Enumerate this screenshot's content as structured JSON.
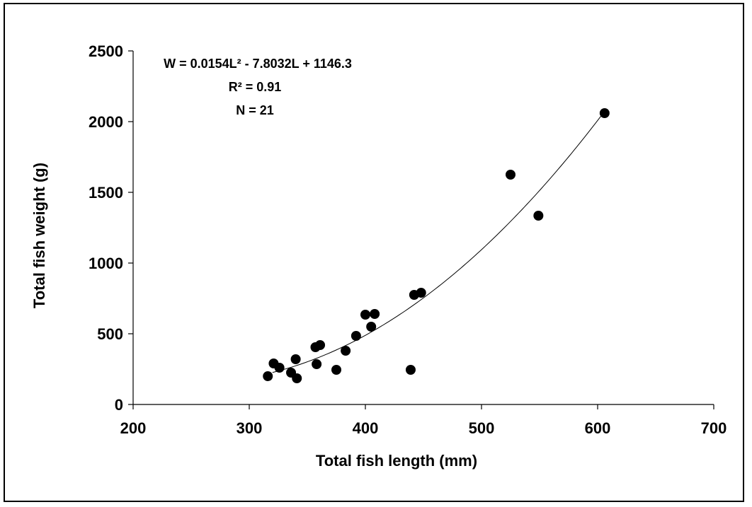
{
  "chart_data": {
    "type": "scatter",
    "xlabel": "Total fish length (mm)",
    "ylabel": "Total fish weight (g)",
    "xlim": [
      200,
      700
    ],
    "ylim": [
      0,
      2500
    ],
    "x_ticks": [
      200,
      300,
      400,
      500,
      600,
      700
    ],
    "y_ticks": [
      0,
      500,
      1000,
      1500,
      2000,
      2500
    ],
    "grid": false,
    "legend": "none",
    "annotations": {
      "equation": "W = 0.0154L² - 7.8032L + 1146.3",
      "r_squared": "R² = 0.91",
      "n": "N = 21"
    },
    "trendline": {
      "type": "polynomial",
      "coefficients": {
        "a": 0.0154,
        "b": -7.8032,
        "c": 1146.3
      },
      "x_range": [
        320,
        606
      ]
    },
    "series": [
      {
        "points": [
          {
            "x": 316,
            "y": 200
          },
          {
            "x": 321,
            "y": 290
          },
          {
            "x": 326,
            "y": 260
          },
          {
            "x": 336,
            "y": 225
          },
          {
            "x": 340,
            "y": 320
          },
          {
            "x": 341,
            "y": 185
          },
          {
            "x": 357,
            "y": 405
          },
          {
            "x": 358,
            "y": 285
          },
          {
            "x": 361,
            "y": 420
          },
          {
            "x": 375,
            "y": 245
          },
          {
            "x": 383,
            "y": 380
          },
          {
            "x": 392,
            "y": 485
          },
          {
            "x": 400,
            "y": 635
          },
          {
            "x": 405,
            "y": 550
          },
          {
            "x": 408,
            "y": 640
          },
          {
            "x": 439,
            "y": 245
          },
          {
            "x": 442,
            "y": 775
          },
          {
            "x": 448,
            "y": 790
          },
          {
            "x": 525,
            "y": 1625
          },
          {
            "x": 549,
            "y": 1335
          },
          {
            "x": 606,
            "y": 2060
          }
        ]
      }
    ]
  }
}
